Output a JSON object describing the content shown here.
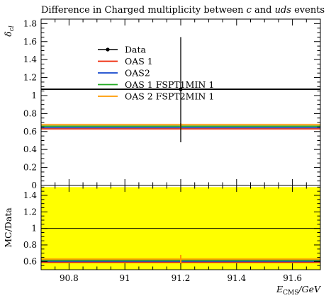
{
  "chart_data": [
    {
      "type": "line",
      "panel": "main",
      "title_parts": [
        {
          "text": "Difference in Charged multiplicity between ",
          "italic": false
        },
        {
          "text": "c",
          "italic": true
        },
        {
          "text": " and ",
          "italic": false
        },
        {
          "text": "uds",
          "italic": true
        },
        {
          "text": " events",
          "italic": false
        }
      ],
      "ylabel": "δ",
      "ylabel_sub": "cl",
      "xlim": [
        90.7,
        91.7
      ],
      "ylim": [
        0,
        1.85
      ],
      "y_ticks": [
        0,
        0.2,
        0.4,
        0.6,
        0.8,
        1,
        1.2,
        1.4,
        1.6,
        1.8
      ],
      "y_tick_labels": [
        "0",
        "0.2",
        "0.4",
        "0.6",
        "0.8",
        "1",
        "1.2",
        "1.4",
        "1.6",
        "1.8"
      ],
      "legend_position": "top-left",
      "data": {
        "name": "Data",
        "x": 91.2,
        "y": 1.07,
        "yerr_low": 0.59,
        "yerr_high": 0.58,
        "color": "#000000"
      },
      "series": [
        {
          "name": "OAS 1",
          "color": "#ee2200",
          "y": 0.63,
          "band": 0.004
        },
        {
          "name": "OAS2",
          "color": "#1144cc",
          "y": 0.645,
          "band": 0.004
        },
        {
          "name": "OAS 1 FSPT1MIN 1",
          "color": "#22aa22",
          "y": 0.66,
          "band": 0.004
        },
        {
          "name": "OAS 2 FSPT2MIN 1",
          "color": "#ff9900",
          "y": 0.675,
          "band": 0.004
        }
      ]
    },
    {
      "type": "line",
      "panel": "ratio",
      "ylabel": "MC/Data",
      "xlabel_main": "E",
      "xlabel_sub": "CMS",
      "xlabel_unit": "/GeV",
      "xlim": [
        90.7,
        91.7
      ],
      "ylim": [
        0.5,
        1.52
      ],
      "x_ticks": [
        90.8,
        91,
        91.2,
        91.4,
        91.6
      ],
      "x_tick_labels": [
        "90.8",
        "91",
        "91.2",
        "91.4",
        "91.6"
      ],
      "y_ticks": [
        0.6,
        0.8,
        1,
        1.2,
        1.4
      ],
      "y_tick_labels": [
        "0.6",
        "0.8",
        "1",
        "1.2",
        "1.4"
      ],
      "band_color": "#ffff00",
      "band_range": [
        0.5,
        1.5
      ],
      "reference_line": 1,
      "series": [
        {
          "name": "OAS 1",
          "color": "#ee2200",
          "y": 0.59
        },
        {
          "name": "OAS2",
          "color": "#1144cc",
          "y": 0.602
        },
        {
          "name": "OAS 1 FSPT1MIN 1",
          "color": "#22aa22",
          "y": 0.615
        },
        {
          "name": "OAS 2 FSPT2MIN 1",
          "color": "#ff9900",
          "y": 0.628
        }
      ],
      "marker": {
        "x": 91.2,
        "y_low": 0.57,
        "y_high": 0.68,
        "color": "#ff9900"
      }
    }
  ]
}
